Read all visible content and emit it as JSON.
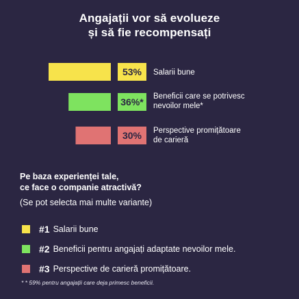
{
  "title": {
    "line1": "Angajații vor să evolueze",
    "line2": "și să fie recompensați"
  },
  "chart_data": {
    "type": "bar",
    "orientation": "horizontal",
    "title": "Angajații vor să evolueze și să fie recompensați",
    "categories": [
      "Salarii bune",
      "Beneficii care se potrivesc nevoilor mele*",
      "Perspective promițătoare de carieră"
    ],
    "values": [
      53,
      36,
      30
    ],
    "value_labels": [
      "53%",
      "36%*",
      "30%"
    ],
    "category_lines": [
      [
        "Salarii bune"
      ],
      [
        "Beneficii care se potrivesc",
        "nevoilor mele*"
      ],
      [
        "Perspective promițătoare",
        "de carieră"
      ]
    ],
    "colors": [
      "#f7e34b",
      "#7ee35f",
      "#e07373"
    ],
    "unit": "%"
  },
  "question": {
    "line1": "Pe baza experienței tale,",
    "line2": "ce face o companie atractivă?"
  },
  "hint": "(Se pot selecta mai multe variante)",
  "legend": [
    {
      "num": "#1",
      "text": "Salarii bune",
      "color": "#f7e34b"
    },
    {
      "num": "#2",
      "text": "Beneficii pentru angajați adaptate nevoilor mele.",
      "color": "#7ee35f"
    },
    {
      "num": "#3",
      "text": "Perspective de carieră promițătoare.",
      "color": "#e07373"
    }
  ],
  "footnote": "* * 59% pentru angajații care deja primesc beneficii."
}
